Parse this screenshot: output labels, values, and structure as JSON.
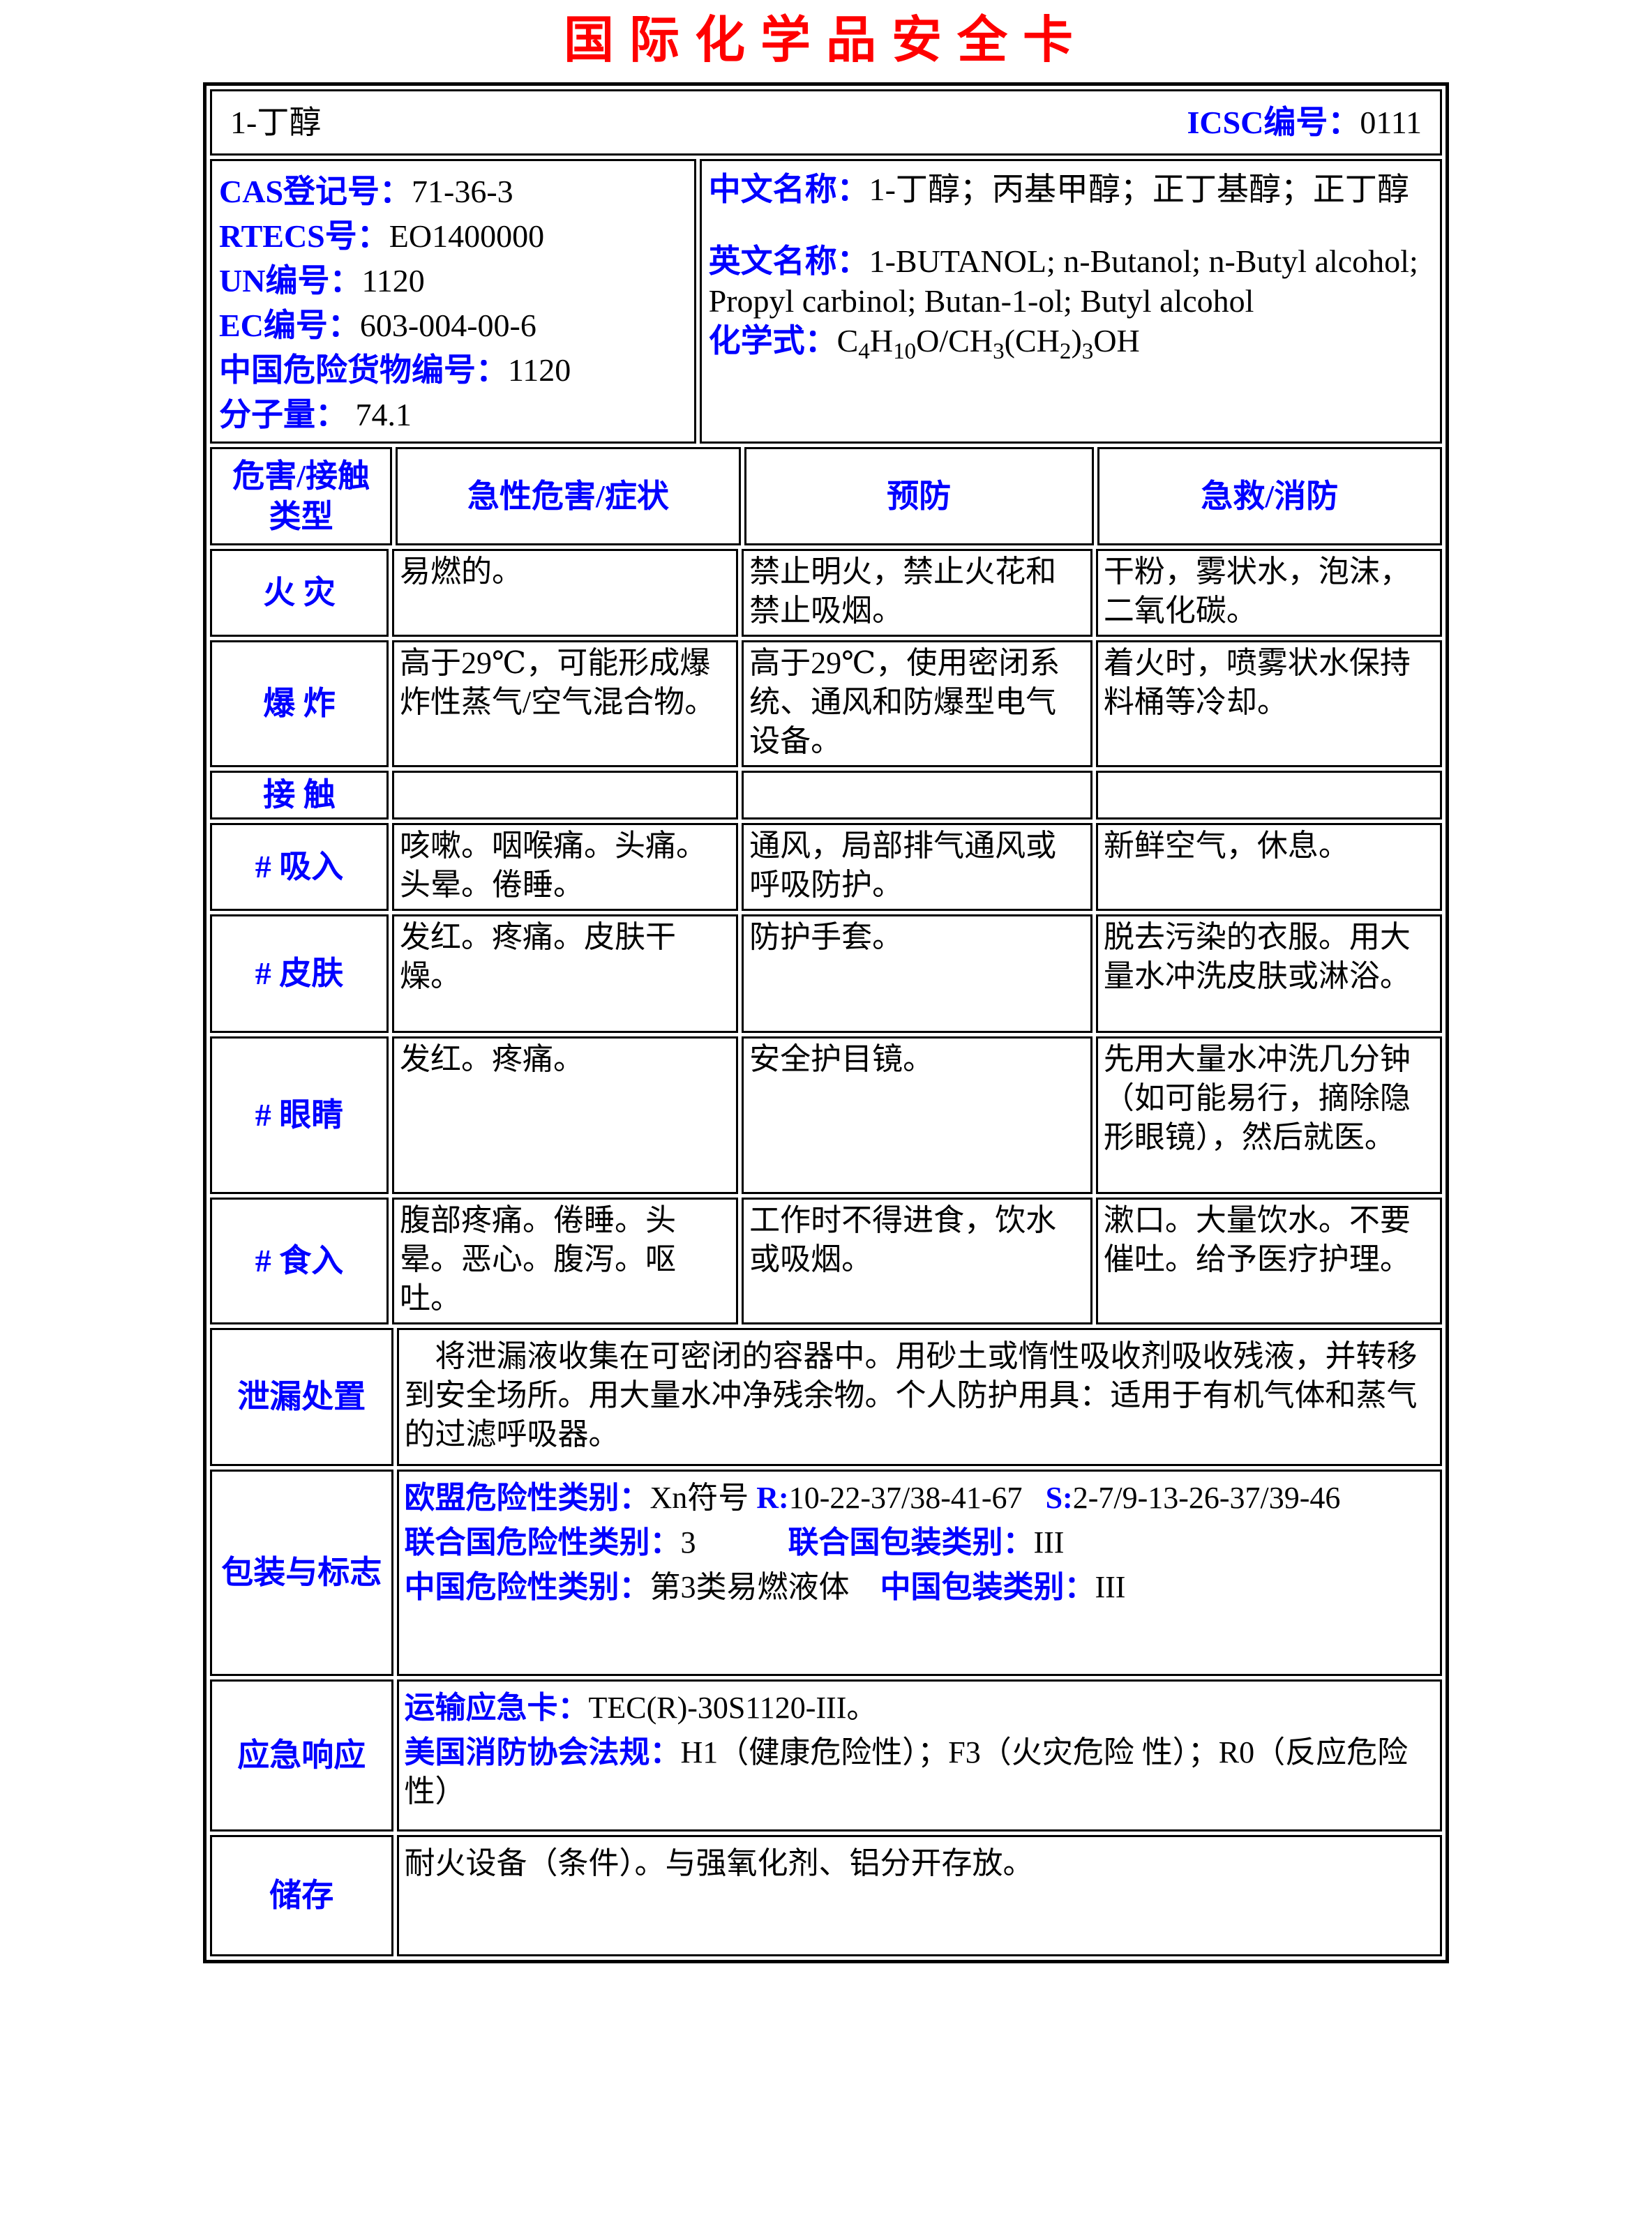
{
  "title": "国际化学品安全卡",
  "colors": {
    "accent_blue": "#0000ff",
    "title_red": "#ff0000",
    "border_black": "#000000",
    "background": "#ffffff"
  },
  "header": {
    "substance": "1-丁醇",
    "icsc": [
      {
        "t": "ICSC编号：",
        "c": "b"
      },
      {
        "t": "0111",
        "c": "k"
      }
    ]
  },
  "info": {
    "left": [
      [
        {
          "t": "CAS登记号：",
          "c": "b"
        },
        {
          "t": "71-36-3",
          "c": "k"
        }
      ],
      [
        {
          "t": "RTECS号：",
          "c": "b"
        },
        {
          "t": "EO1400000",
          "c": "k"
        }
      ],
      [
        {
          "t": "UN编号：",
          "c": "b"
        },
        {
          "t": "1120",
          "c": "k"
        }
      ],
      [
        {
          "t": "EC编号：",
          "c": "b"
        },
        {
          "t": "603-004-00-6",
          "c": "k"
        }
      ],
      [
        {
          "t": "中国危险货物编号：",
          "c": "b"
        },
        {
          "t": "1120",
          "c": "k"
        }
      ],
      [
        {
          "t": "分子量：",
          "c": "b"
        },
        {
          "t": " 74.1",
          "c": "k"
        }
      ]
    ],
    "right": [
      [
        {
          "t": "中文名称：",
          "c": "b"
        },
        {
          "t": "1-丁醇；丙基甲醇；正丁基醇；正丁醇",
          "c": "k"
        }
      ],
      [
        {
          "t": "英文名称：",
          "c": "b"
        },
        {
          "t": "1-BUTANOL; n-Butanol; n-Butyl alcohol; Propyl carbinol; Butan-1-ol; Butyl alcohol",
          "c": "k"
        }
      ],
      [
        {
          "t": "化学式：",
          "c": "b"
        },
        {
          "t": "C",
          "c": "k"
        },
        {
          "t": "4",
          "c": "k",
          "sub": true
        },
        {
          "t": "H",
          "c": "k"
        },
        {
          "t": "10",
          "c": "k",
          "sub": true
        },
        {
          "t": "O/CH",
          "c": "k"
        },
        {
          "t": "3",
          "c": "k",
          "sub": true
        },
        {
          "t": "(CH",
          "c": "k"
        },
        {
          "t": "2",
          "c": "k",
          "sub": true
        },
        {
          "t": ")",
          "c": "k"
        },
        {
          "t": "3",
          "c": "k",
          "sub": true
        },
        {
          "t": "OH",
          "c": "k"
        }
      ]
    ]
  },
  "hazard": {
    "headers": [
      "危害/接触\n类型",
      "急性危害/症状",
      "预防",
      "急救/消防"
    ],
    "rows": [
      {
        "label": "火 灾",
        "cells": [
          "易燃的。",
          "禁止明火，禁止火花和禁止吸烟。",
          "干粉，雾状水，泡沫，二氧化碳。"
        ]
      },
      {
        "label": "爆 炸",
        "cells": [
          "高于29℃，可能形成爆炸性蒸气/空气混合物。",
          "高于29℃，使用密闭系统、通风和防爆型电气设备。",
          "着火时，喷雾状水保持料桶等冷却。"
        ]
      },
      {
        "label": "接 触",
        "cells": [
          "",
          "",
          ""
        ]
      },
      {
        "label": "# 吸入",
        "cells": [
          "咳嗽。咽喉痛。头痛。头晕。倦睡。",
          "通风，局部排气通风或呼吸防护。",
          "新鲜空气，休息。"
        ]
      },
      {
        "label": "# 皮肤",
        "cells": [
          "发红。疼痛。皮肤干燥。",
          "防护手套。",
          "脱去污染的衣服。用大量水冲洗皮肤或淋浴。"
        ]
      },
      {
        "label": "# 眼睛",
        "cells": [
          "发红。疼痛。",
          "安全护目镜。",
          "先用大量水冲洗几分钟（如可能易行，摘除隐形眼镜），然后就医。"
        ]
      },
      {
        "label": "# 食入",
        "cells": [
          "腹部疼痛。倦睡。头晕。恶心。腹泻。呕吐。",
          "工作时不得进食，饮水或吸烟。",
          "漱口。大量饮水。不要催吐。给予医疗护理。"
        ]
      }
    ]
  },
  "sections": [
    {
      "label": "泄漏处置",
      "paras": [
        [
          {
            "t": "　将泄漏液收集在可密闭的容器中。用砂土或惰性吸收剂吸收残液，并转移到安全场所。用大量水冲净残余物。个人防护用具：适用于有机气体和蒸气的过滤呼吸器。",
            "c": "k"
          }
        ]
      ]
    },
    {
      "label": "包装与标志",
      "paras": [
        [
          {
            "t": "欧盟危险性类别：",
            "c": "b"
          },
          {
            "t": "Xn符号 ",
            "c": "k"
          },
          {
            "t": "R:",
            "c": "b"
          },
          {
            "t": "10-22-37/38-41-67",
            "c": "k"
          },
          {
            "t": "   ",
            "c": "k"
          },
          {
            "t": "S:",
            "c": "b"
          },
          {
            "t": "2-7/9-13-26-37/39-46",
            "c": "k"
          }
        ],
        [
          {
            "t": "联合国危险性类别：",
            "c": "b"
          },
          {
            "t": "3",
            "c": "k"
          },
          {
            "t": "　　　",
            "c": "k"
          },
          {
            "t": "联合国包装类别：",
            "c": "b"
          },
          {
            "t": "III",
            "c": "k"
          }
        ],
        [
          {
            "t": "中国危险性类别：",
            "c": "b"
          },
          {
            "t": "第3类易燃液体",
            "c": "k"
          },
          {
            "t": "　",
            "c": "k"
          },
          {
            "t": "中国包装类别：",
            "c": "b"
          },
          {
            "t": "III",
            "c": "k"
          }
        ]
      ]
    },
    {
      "label": "应急响应",
      "paras": [
        [
          {
            "t": "运输应急卡：",
            "c": "b"
          },
          {
            "t": "TEC(R)-30S1120-III。",
            "c": "k"
          }
        ],
        [
          {
            "t": "美国消防协会法规：",
            "c": "b"
          },
          {
            "t": "H1（健康危险性）；F3（火灾危险 性）；R0（反应危险性）",
            "c": "k"
          }
        ]
      ]
    },
    {
      "label": "储存",
      "paras": [
        [
          {
            "t": "耐火设备（条件）。与强氧化剂、铝分开存放。",
            "c": "k"
          }
        ]
      ]
    }
  ]
}
